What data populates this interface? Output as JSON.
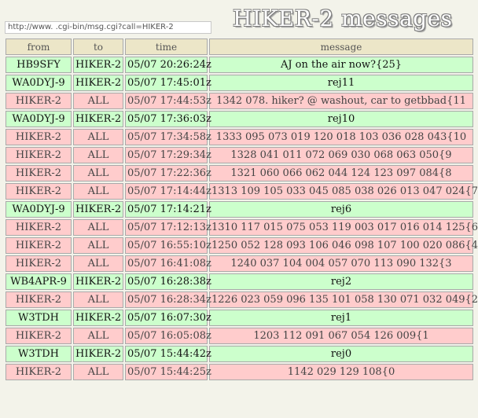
{
  "url_bar": {
    "value": "http://www.              .cgi-bin/msg.cgi?call=HIKER-2"
  },
  "page_title": "HIKER-2 messages",
  "table": {
    "headers": [
      "from",
      "to",
      "time",
      "message"
    ],
    "rows": [
      {
        "from": "HB9SFY",
        "to": "HIKER-2",
        "time": "05/07 20:26:24z",
        "message": "AJ on the air now?{25}",
        "color": "green"
      },
      {
        "from": "WA0DYJ-9",
        "to": "HIKER-2",
        "time": "05/07 17:45:01z",
        "message": "rej11",
        "color": "green"
      },
      {
        "from": "HIKER-2",
        "to": "ALL",
        "time": "05/07 17:44:53z",
        "message": "1342 078. hiker? @ washout, car to getbbad{11",
        "color": "pink"
      },
      {
        "from": "WA0DYJ-9",
        "to": "HIKER-2",
        "time": "05/07 17:36:03z",
        "message": "rej10",
        "color": "green"
      },
      {
        "from": "HIKER-2",
        "to": "ALL",
        "time": "05/07 17:34:58z",
        "message": "1333 095 073 019 120 018 103 036 028 043{10",
        "color": "pink"
      },
      {
        "from": "HIKER-2",
        "to": "ALL",
        "time": "05/07 17:29:34z",
        "message": "1328 041 011 072 069 030 068 063 050{9",
        "color": "pink"
      },
      {
        "from": "HIKER-2",
        "to": "ALL",
        "time": "05/07 17:22:36z",
        "message": "1321 060 066 062 044 124 123 097 084{8",
        "color": "pink"
      },
      {
        "from": "HIKER-2",
        "to": "ALL",
        "time": "05/07 17:14:44z",
        "message": "1313 109 105 033 045 085 038 026 013 047 024{7",
        "color": "pink"
      },
      {
        "from": "WA0DYJ-9",
        "to": "HIKER-2",
        "time": "05/07 17:14:21z",
        "message": "rej6",
        "color": "green"
      },
      {
        "from": "HIKER-2",
        "to": "ALL",
        "time": "05/07 17:12:13z",
        "message": "1310 117 015 075 053 119 003 017 016 014 125{6",
        "color": "pink"
      },
      {
        "from": "HIKER-2",
        "to": "ALL",
        "time": "05/07 16:55:10z",
        "message": "1250 052 128 093 106 046 098 107 100 020 086{4",
        "color": "pink"
      },
      {
        "from": "HIKER-2",
        "to": "ALL",
        "time": "05/07 16:41:08z",
        "message": "1240 037 104 004 057 070 113 090 132{3",
        "color": "pink"
      },
      {
        "from": "WB4APR-9",
        "to": "HIKER-2",
        "time": "05/07 16:28:38z",
        "message": "rej2",
        "color": "green"
      },
      {
        "from": "HIKER-2",
        "to": "ALL",
        "time": "05/07 16:28:34z",
        "message": "1226 023 059 096 135 101 058 130 071 032 049{2",
        "color": "pink"
      },
      {
        "from": "W3TDH",
        "to": "HIKER-2",
        "time": "05/07 16:07:30z",
        "message": "rej1",
        "color": "green"
      },
      {
        "from": "HIKER-2",
        "to": "ALL",
        "time": "05/07 16:05:08z",
        "message": "1203 112 091 067 054 126 009{1",
        "color": "pink"
      },
      {
        "from": "W3TDH",
        "to": "HIKER-2",
        "time": "05/07 15:44:42z",
        "message": "rej0",
        "color": "green"
      },
      {
        "from": "HIKER-2",
        "to": "ALL",
        "time": "05/07 15:44:25z",
        "message": "1142 029 129 108{0",
        "color": "pink"
      }
    ]
  }
}
